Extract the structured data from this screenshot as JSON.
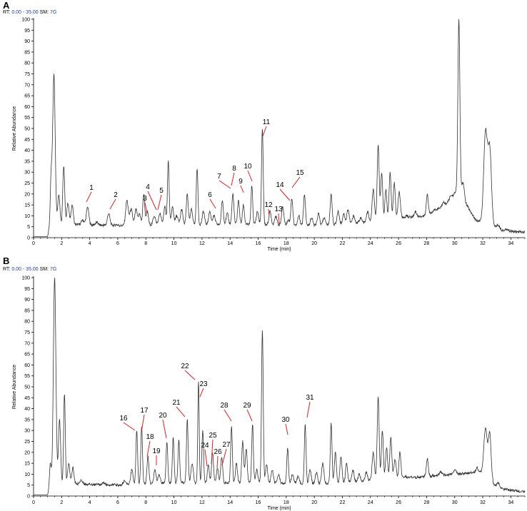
{
  "chart_data": [
    {
      "type": "line",
      "panel_label": "A",
      "header": {
        "rt_label": "RT:",
        "rt_value": "0.00 - 35.00",
        "sm_label": "SM:",
        "sm_value": "7G"
      },
      "xlabel": "Time (min)",
      "ylabel": "Relative Abundance",
      "xlim": [
        0,
        35
      ],
      "ylim": [
        0,
        100
      ],
      "xticks": [
        0,
        2,
        4,
        6,
        8,
        10,
        12,
        14,
        16,
        18,
        20,
        22,
        24,
        26,
        28,
        30,
        32,
        34
      ],
      "yticks": [
        0,
        5,
        10,
        15,
        20,
        25,
        30,
        35,
        40,
        45,
        50,
        55,
        60,
        65,
        70,
        75,
        80,
        85,
        90,
        95,
        100
      ],
      "baseline": [
        [
          0.0,
          0.5
        ],
        [
          1.0,
          0.5
        ],
        [
          1.1,
          4
        ],
        [
          3,
          6
        ],
        [
          6,
          5.5
        ],
        [
          10,
          6
        ],
        [
          16,
          6
        ],
        [
          20,
          5.5
        ],
        [
          24,
          7
        ],
        [
          26,
          9
        ],
        [
          28,
          10
        ],
        [
          29.5,
          16
        ],
        [
          30.2,
          22
        ],
        [
          31.5,
          8
        ],
        [
          32.8,
          5
        ],
        [
          33.5,
          3
        ],
        [
          35,
          2.5
        ]
      ],
      "peaks": [
        [
          1.25,
          26,
          0.06
        ],
        [
          1.45,
          75,
          0.09
        ],
        [
          1.8,
          20,
          0.08
        ],
        [
          2.15,
          33,
          0.07
        ],
        [
          2.45,
          16,
          0.08
        ],
        [
          2.75,
          15,
          0.08
        ],
        [
          3.5,
          8,
          0.1
        ],
        [
          3.85,
          14,
          0.09
        ],
        [
          4.5,
          7,
          0.1
        ],
        [
          5.35,
          11,
          0.09
        ],
        [
          5.9,
          6,
          0.1
        ],
        [
          6.65,
          17,
          0.09
        ],
        [
          6.95,
          13,
          0.1
        ],
        [
          7.3,
          13,
          0.08
        ],
        [
          7.55,
          11,
          0.08
        ],
        [
          7.85,
          20,
          0.07
        ],
        [
          8.1,
          12,
          0.08
        ],
        [
          8.6,
          10,
          0.09
        ],
        [
          9.0,
          11,
          0.09
        ],
        [
          9.35,
          14,
          0.08
        ],
        [
          9.6,
          35,
          0.06
        ],
        [
          9.9,
          14,
          0.08
        ],
        [
          10.2,
          10,
          0.09
        ],
        [
          10.55,
          13,
          0.08
        ],
        [
          10.95,
          20,
          0.07
        ],
        [
          11.25,
          13,
          0.08
        ],
        [
          11.65,
          32,
          0.06
        ],
        [
          12.1,
          12,
          0.08
        ],
        [
          12.55,
          12,
          0.08
        ],
        [
          12.85,
          10,
          0.09
        ],
        [
          13.45,
          17,
          0.07
        ],
        [
          13.8,
          11,
          0.08
        ],
        [
          14.2,
          20,
          0.07
        ],
        [
          14.6,
          17,
          0.07
        ],
        [
          14.95,
          15,
          0.07
        ],
        [
          15.55,
          24,
          0.06
        ],
        [
          15.95,
          12,
          0.08
        ],
        [
          16.3,
          50,
          0.06
        ],
        [
          16.85,
          12,
          0.08
        ],
        [
          17.25,
          10,
          0.08
        ],
        [
          17.75,
          14,
          0.08
        ],
        [
          18.15,
          8,
          0.09
        ],
        [
          18.4,
          18,
          0.07
        ],
        [
          18.9,
          10,
          0.08
        ],
        [
          19.3,
          20,
          0.07
        ],
        [
          19.8,
          9,
          0.09
        ],
        [
          20.3,
          11,
          0.08
        ],
        [
          20.7,
          9,
          0.09
        ],
        [
          21.2,
          20,
          0.07
        ],
        [
          21.7,
          12,
          0.08
        ],
        [
          22.1,
          11,
          0.08
        ],
        [
          22.4,
          13,
          0.08
        ],
        [
          22.8,
          10,
          0.08
        ],
        [
          23.3,
          9,
          0.09
        ],
        [
          23.8,
          12,
          0.08
        ],
        [
          24.2,
          22,
          0.08
        ],
        [
          24.55,
          43,
          0.07
        ],
        [
          24.8,
          30,
          0.07
        ],
        [
          25.1,
          22,
          0.07
        ],
        [
          25.4,
          30,
          0.07
        ],
        [
          25.7,
          25,
          0.07
        ],
        [
          26.05,
          21,
          0.08
        ],
        [
          26.6,
          10,
          0.09
        ],
        [
          27.2,
          12,
          0.08
        ],
        [
          28.05,
          20,
          0.07
        ],
        [
          28.6,
          13,
          0.08
        ],
        [
          29.2,
          16,
          0.08
        ],
        [
          29.7,
          19,
          0.09
        ],
        [
          30.3,
          100,
          0.07
        ],
        [
          30.6,
          25,
          0.09
        ],
        [
          32.2,
          48,
          0.13
        ],
        [
          32.5,
          40,
          0.12
        ],
        [
          33.1,
          6,
          0.1
        ],
        [
          33.7,
          4,
          0.12
        ]
      ],
      "annotations": [
        {
          "text": "1",
          "x": 3.9
        },
        {
          "text": "2",
          "x": 5.4
        },
        {
          "text": "3",
          "x": 7.9
        },
        {
          "text": "4",
          "x": 8.7
        },
        {
          "text": "5",
          "x": 9.0
        },
        {
          "text": "6",
          "x": 12.8
        },
        {
          "text": "7",
          "x": 14.0
        },
        {
          "text": "8",
          "x": 14.2
        },
        {
          "text": "9",
          "x": 15.0
        },
        {
          "text": "10",
          "x": 15.6
        },
        {
          "text": "11",
          "x": 16.3
        },
        {
          "text": "12",
          "x": 16.9
        },
        {
          "text": "13",
          "x": 17.5
        },
        {
          "text": "14",
          "x": 18.1
        },
        {
          "text": "15",
          "x": 18.5
        }
      ]
    },
    {
      "type": "line",
      "panel_label": "B",
      "header": {
        "rt_label": "RT:",
        "rt_value": "0.00 - 35.00",
        "sm_label": "SM:",
        "sm_value": "7G"
      },
      "xlabel": "Time (min)",
      "ylabel": "Relative Abundance",
      "xlim": [
        0,
        35
      ],
      "ylim": [
        0,
        100
      ],
      "xticks": [
        0,
        2,
        4,
        6,
        8,
        10,
        12,
        14,
        16,
        18,
        20,
        22,
        24,
        26,
        28,
        30,
        32,
        34
      ],
      "yticks": [
        0,
        5,
        10,
        15,
        20,
        25,
        30,
        35,
        40,
        45,
        50,
        55,
        60,
        65,
        70,
        75,
        80,
        85,
        90,
        95,
        100
      ],
      "baseline": [
        [
          0.0,
          0.5
        ],
        [
          1.0,
          0.5
        ],
        [
          1.1,
          3
        ],
        [
          3,
          5.5
        ],
        [
          6,
          5
        ],
        [
          10,
          6
        ],
        [
          16,
          6
        ],
        [
          20,
          5.5
        ],
        [
          24,
          7
        ],
        [
          26,
          8
        ],
        [
          28,
          9
        ],
        [
          30,
          10
        ],
        [
          31.8,
          11
        ],
        [
          32.8,
          5
        ],
        [
          33.5,
          3
        ],
        [
          35,
          2
        ]
      ],
      "peaks": [
        [
          1.2,
          15,
          0.06
        ],
        [
          1.5,
          100,
          0.09
        ],
        [
          1.85,
          35,
          0.08
        ],
        [
          2.2,
          47,
          0.06
        ],
        [
          2.5,
          15,
          0.08
        ],
        [
          2.8,
          13,
          0.08
        ],
        [
          3.4,
          7,
          0.1
        ],
        [
          4.2,
          5,
          0.1
        ],
        [
          5.0,
          6,
          0.1
        ],
        [
          5.8,
          5,
          0.1
        ],
        [
          6.5,
          7,
          0.1
        ],
        [
          7.0,
          12,
          0.08
        ],
        [
          7.35,
          30,
          0.06
        ],
        [
          7.7,
          32,
          0.06
        ],
        [
          8.15,
          18,
          0.07
        ],
        [
          8.65,
          12,
          0.08
        ],
        [
          8.95,
          10,
          0.08
        ],
        [
          9.5,
          25,
          0.06
        ],
        [
          9.95,
          27,
          0.06
        ],
        [
          10.35,
          26,
          0.06
        ],
        [
          10.95,
          35,
          0.06
        ],
        [
          11.3,
          15,
          0.08
        ],
        [
          11.75,
          53,
          0.05
        ],
        [
          12.05,
          30,
          0.06
        ],
        [
          12.45,
          14,
          0.07
        ],
        [
          12.75,
          20,
          0.07
        ],
        [
          13.1,
          13,
          0.07
        ],
        [
          13.4,
          18,
          0.07
        ],
        [
          14.1,
          32,
          0.06
        ],
        [
          14.45,
          15,
          0.07
        ],
        [
          14.9,
          25,
          0.07
        ],
        [
          15.15,
          22,
          0.07
        ],
        [
          15.6,
          33,
          0.06
        ],
        [
          15.9,
          12,
          0.08
        ],
        [
          16.3,
          76,
          0.06
        ],
        [
          16.6,
          14,
          0.08
        ],
        [
          17.0,
          12,
          0.08
        ],
        [
          17.45,
          10,
          0.08
        ],
        [
          18.1,
          22,
          0.06
        ],
        [
          18.45,
          10,
          0.08
        ],
        [
          18.85,
          9,
          0.08
        ],
        [
          19.35,
          33,
          0.06
        ],
        [
          19.7,
          12,
          0.08
        ],
        [
          20.15,
          11,
          0.08
        ],
        [
          20.6,
          15,
          0.08
        ],
        [
          21.2,
          33,
          0.06
        ],
        [
          21.5,
          20,
          0.07
        ],
        [
          21.9,
          18,
          0.07
        ],
        [
          22.3,
          15,
          0.07
        ],
        [
          22.75,
          12,
          0.08
        ],
        [
          23.2,
          10,
          0.08
        ],
        [
          23.7,
          11,
          0.08
        ],
        [
          24.2,
          20,
          0.08
        ],
        [
          24.55,
          45,
          0.07
        ],
        [
          24.85,
          30,
          0.07
        ],
        [
          25.15,
          22,
          0.07
        ],
        [
          25.45,
          27,
          0.07
        ],
        [
          25.75,
          17,
          0.08
        ],
        [
          26.1,
          20,
          0.07
        ],
        [
          26.5,
          9,
          0.09
        ],
        [
          27.1,
          8,
          0.09
        ],
        [
          28.05,
          17,
          0.07
        ],
        [
          29.0,
          11,
          0.1
        ],
        [
          30.0,
          12,
          0.1
        ],
        [
          31.6,
          13,
          0.08
        ],
        [
          32.2,
          31,
          0.12
        ],
        [
          32.5,
          28,
          0.1
        ],
        [
          33.1,
          6,
          0.09
        ],
        [
          33.5,
          3,
          0.1
        ]
      ],
      "annotations": [
        {
          "text": "16",
          "x": 7.3
        },
        {
          "text": "17",
          "x": 7.7
        },
        {
          "text": "18",
          "x": 8.2
        },
        {
          "text": "19",
          "x": 8.8
        },
        {
          "text": "20",
          "x": 9.5
        },
        {
          "text": "21",
          "x": 10.9
        },
        {
          "text": "22",
          "x": 11.6
        },
        {
          "text": "23",
          "x": 11.8
        },
        {
          "text": "24",
          "x": 12.4
        },
        {
          "text": "25",
          "x": 12.8
        },
        {
          "text": "26",
          "x": 13.0
        },
        {
          "text": "27",
          "x": 13.4
        },
        {
          "text": "28",
          "x": 14.1
        },
        {
          "text": "29",
          "x": 15.6
        },
        {
          "text": "30",
          "x": 18.1
        },
        {
          "text": "31",
          "x": 19.3
        }
      ]
    }
  ]
}
